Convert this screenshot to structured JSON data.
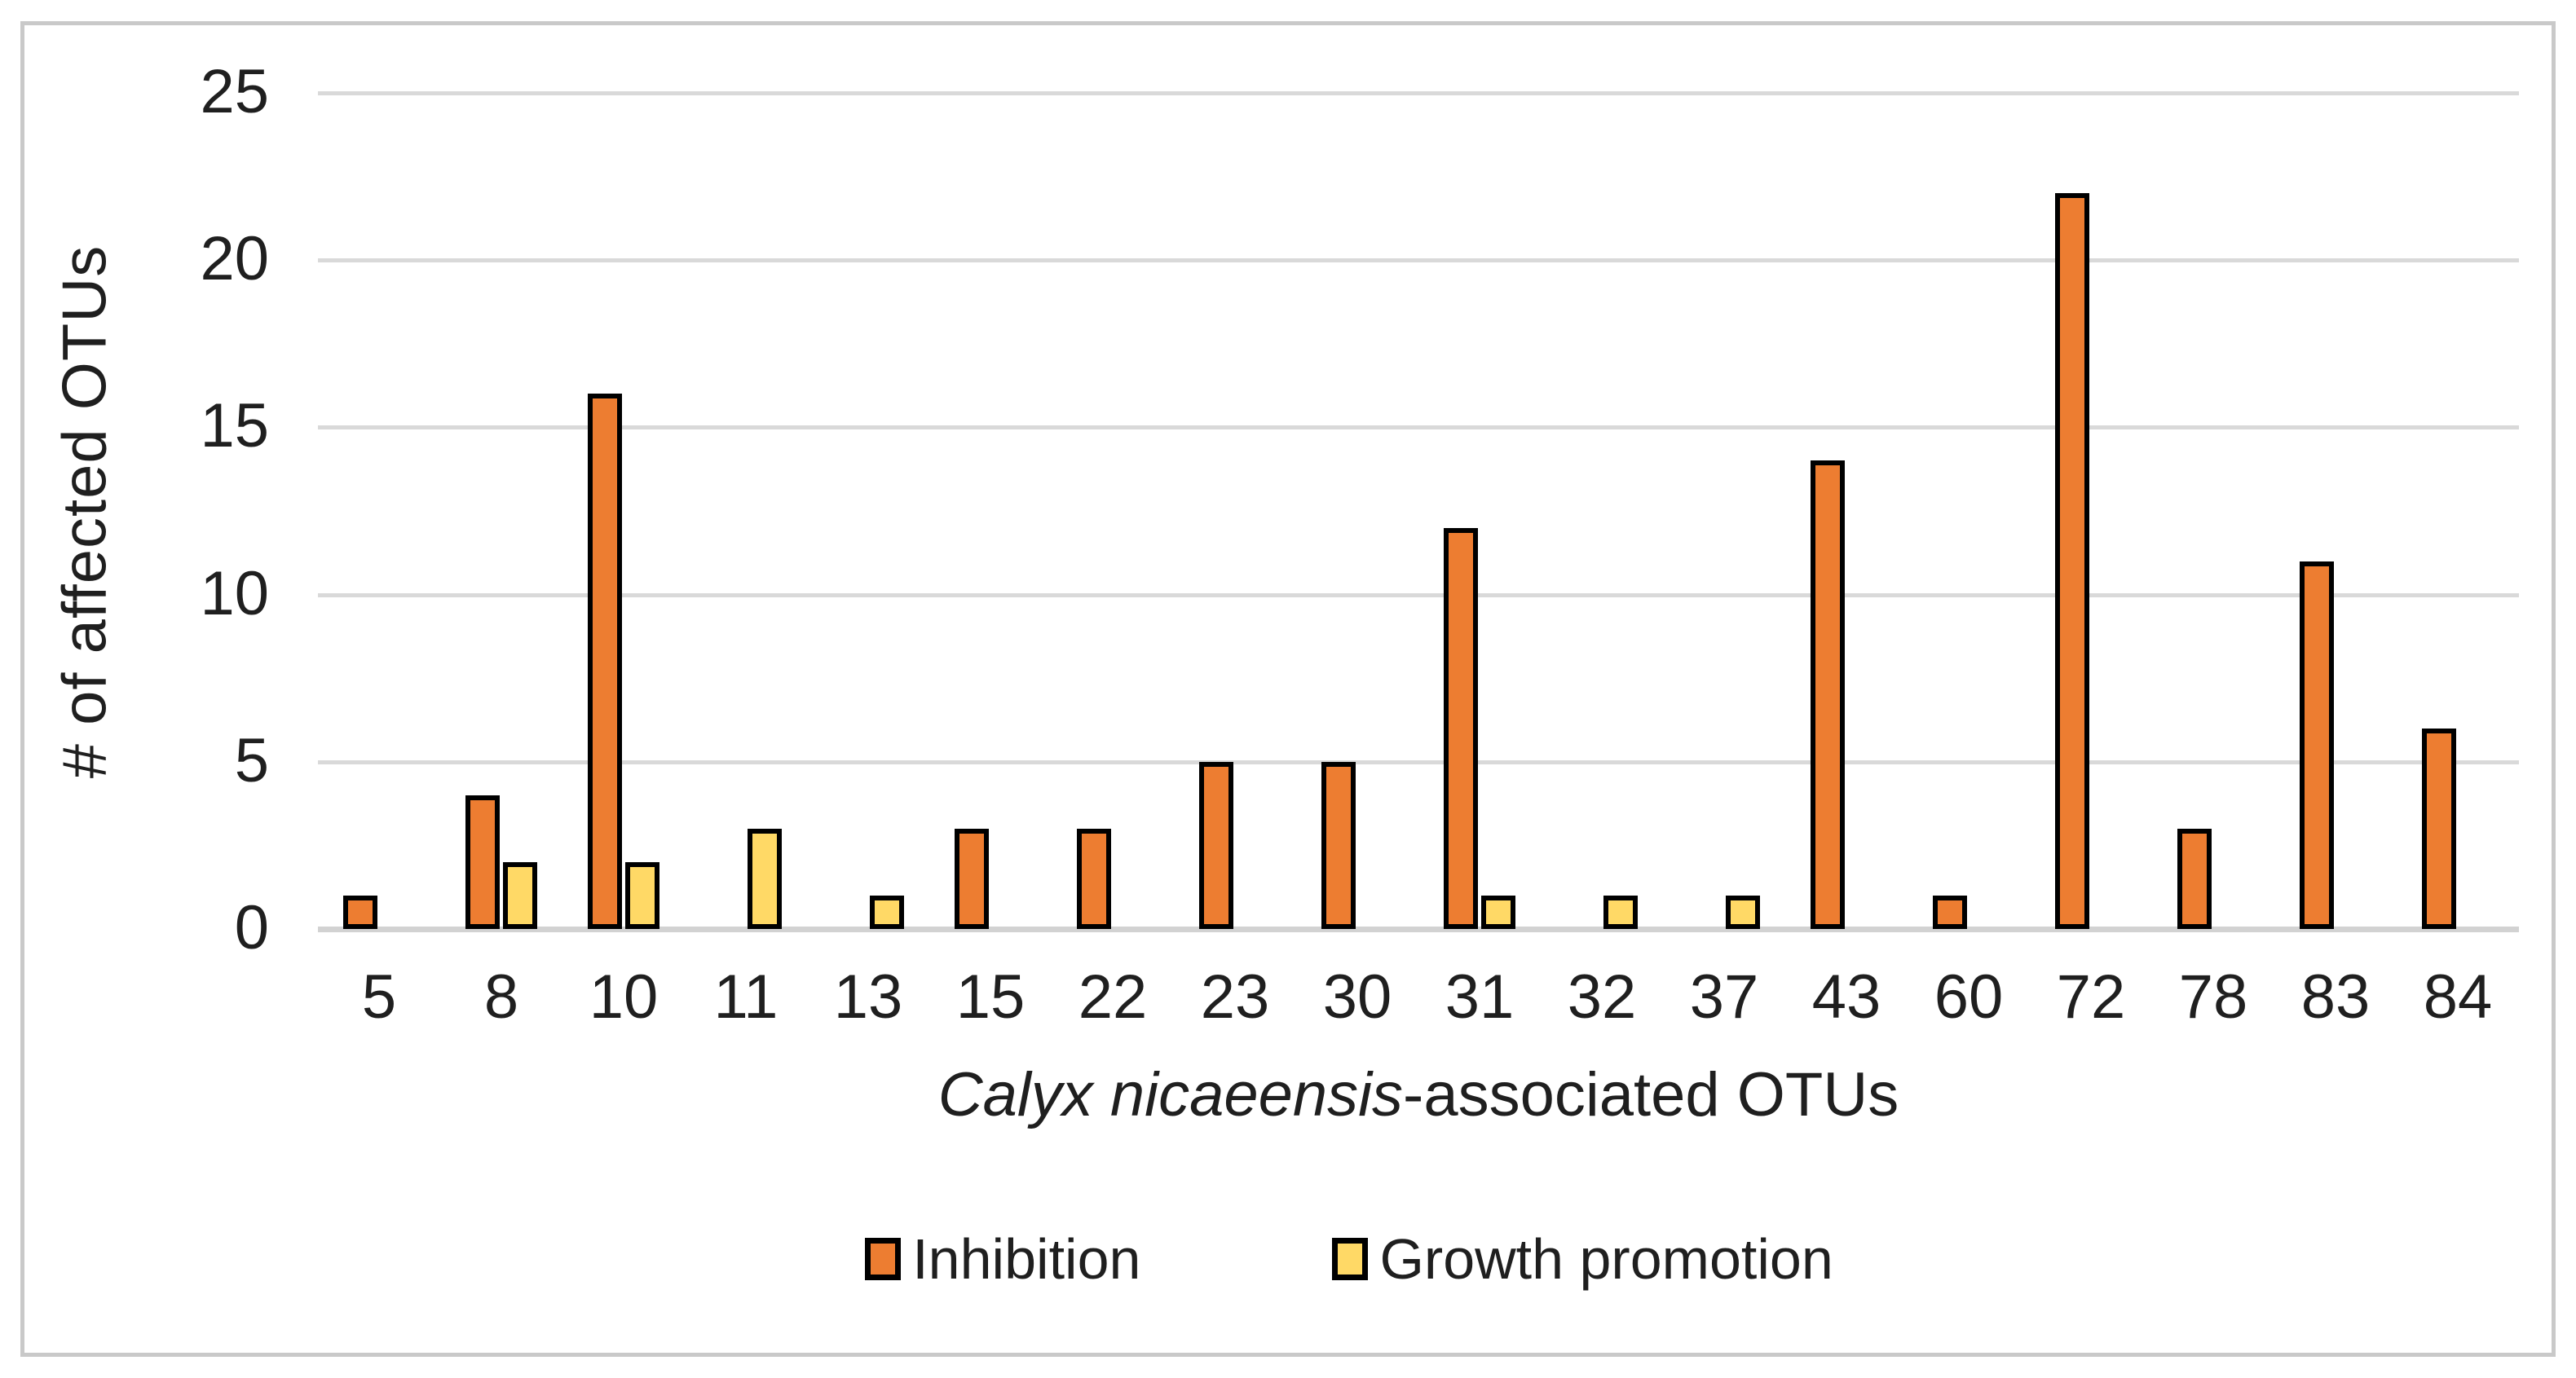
{
  "chart_data": {
    "type": "bar",
    "title": "",
    "categories": [
      "5",
      "8",
      "10",
      "11",
      "13",
      "15",
      "22",
      "23",
      "30",
      "31",
      "32",
      "37",
      "43",
      "60",
      "72",
      "78",
      "83",
      "84"
    ],
    "series": [
      {
        "name": "Inhibition",
        "color": "#ED7D31",
        "values": [
          1,
          4,
          16,
          0,
          0,
          3,
          3,
          5,
          5,
          12,
          0,
          0,
          14,
          1,
          22,
          3,
          11,
          6
        ]
      },
      {
        "name": "Growth promotion",
        "color": "#FFD966",
        "values": [
          0,
          2,
          2,
          3,
          1,
          0,
          0,
          0,
          0,
          1,
          1,
          1,
          0,
          0,
          0,
          0,
          0,
          0
        ]
      }
    ],
    "ylabel": "# of affected OTUs",
    "xlabel_italic": "Calyx nicaeensis",
    "xlabel_rest": "-associated OTUs",
    "ylim": [
      0,
      25
    ],
    "yticks": [
      0,
      5,
      10,
      15,
      20,
      25
    ],
    "grid": true,
    "legend_position": "bottom",
    "bar_border_color": "#000000"
  }
}
